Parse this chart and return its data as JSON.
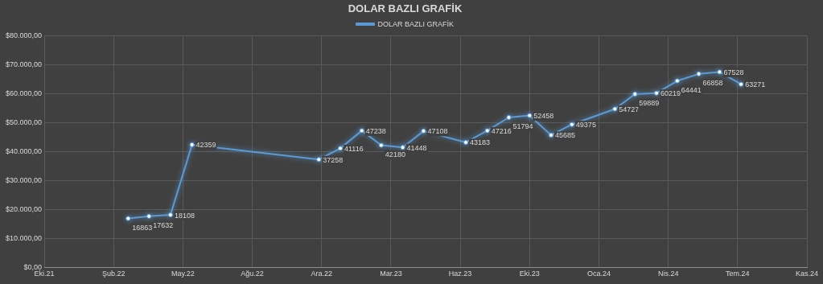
{
  "chart_data": {
    "type": "line",
    "title": "DOLAR BAZLI GRAFİK",
    "x": [
      "2022-03-01",
      "2022-03-31",
      "2022-05-01",
      "2022-06-01",
      "2022-12-01",
      "2023-01-01",
      "2023-02-01",
      "2023-03-01",
      "2023-04-01",
      "2023-05-01",
      "2023-07-01",
      "2023-08-01",
      "2023-09-01",
      "2023-10-01",
      "2023-11-01",
      "2023-12-01",
      "2024-02-01",
      "2024-03-01",
      "2024-04-01",
      "2024-05-01",
      "2024-06-01",
      "2024-07-01",
      "2024-08-01"
    ],
    "series": [
      {
        "name": "DOLAR BAZLI GRAFİK",
        "color": "#5b9bd5",
        "values": [
          16863,
          17632,
          18108,
          42359,
          37258,
          41116,
          47238,
          42180,
          41448,
          47108,
          43183,
          47216,
          51794,
          52458,
          45685,
          49375,
          54727,
          59889,
          60219,
          64441,
          66858,
          67528,
          63271
        ]
      }
    ],
    "xlim": [
      "2021-10-31",
      "2024-11-04"
    ],
    "xticks": [
      {
        "value": "2021-10-31",
        "label": "Eki.21"
      },
      {
        "value": "2022-02-08",
        "label": "Şub.22"
      },
      {
        "value": "2022-05-19",
        "label": "May.22"
      },
      {
        "value": "2022-08-27",
        "label": "Ağu.22"
      },
      {
        "value": "2022-12-05",
        "label": "Ara.22"
      },
      {
        "value": "2023-03-15",
        "label": "Mar.23"
      },
      {
        "value": "2023-06-23",
        "label": "Haz.23"
      },
      {
        "value": "2023-10-01",
        "label": "Eki.23"
      },
      {
        "value": "2024-01-09",
        "label": "Oca.24"
      },
      {
        "value": "2024-04-18",
        "label": "Nis.24"
      },
      {
        "value": "2024-07-27",
        "label": "Tem.24"
      },
      {
        "value": "2024-11-04",
        "label": "Kas.24"
      }
    ],
    "ylim": [
      0,
      80000
    ],
    "yticks": [
      {
        "value": 0,
        "label": "$0,00"
      },
      {
        "value": 10000,
        "label": "$10.000,00"
      },
      {
        "value": 20000,
        "label": "$20.000,00"
      },
      {
        "value": 30000,
        "label": "$30.000,00"
      },
      {
        "value": 40000,
        "label": "$40.000,00"
      },
      {
        "value": 50000,
        "label": "$50.000,00"
      },
      {
        "value": 60000,
        "label": "$60.000,00"
      },
      {
        "value": 70000,
        "label": "$70.000,00"
      },
      {
        "value": 80000,
        "label": "$80.000,00"
      }
    ],
    "grid": true,
    "legend": "top",
    "marker": "circle",
    "line_style": "solid",
    "data_labels": true
  }
}
